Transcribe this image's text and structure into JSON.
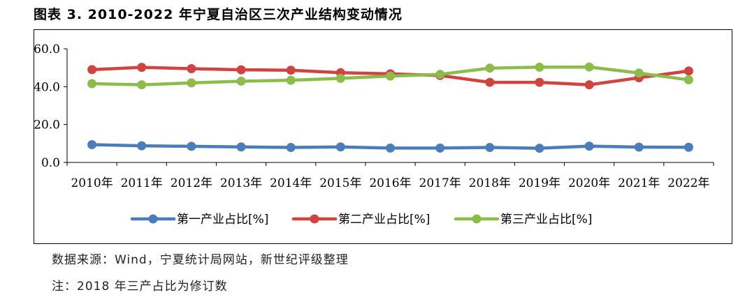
{
  "title": "图表 3. 2010-2022 年宁夏自治区三次产业结构变动情况",
  "source": "数据来源：Wind，宁夏统计局网站，新世纪评级整理",
  "note": "注：2018 年三产占比为修订数",
  "chart_data": {
    "type": "line",
    "title": "",
    "xlabel": "",
    "ylabel": "",
    "categories": [
      "2010年",
      "2011年",
      "2012年",
      "2013年",
      "2014年",
      "2015年",
      "2016年",
      "2017年",
      "2018年",
      "2019年",
      "2020年",
      "2021年",
      "2022年"
    ],
    "ylim": [
      0,
      60
    ],
    "yticks": [
      "0.0",
      "20.0",
      "40.0",
      "60.0"
    ],
    "ytick_values": [
      0,
      20,
      40,
      60
    ],
    "grid": false,
    "legend_position": "bottom",
    "series": [
      {
        "name": "第一产业占比[%]",
        "color": "#4a7ebb",
        "values": [
          9.4,
          8.8,
          8.5,
          8.2,
          7.9,
          8.2,
          7.6,
          7.6,
          7.9,
          7.5,
          8.6,
          8.1,
          8.0
        ]
      },
      {
        "name": "第二产业占比[%]",
        "color": "#d0433f",
        "values": [
          49.0,
          50.2,
          49.5,
          48.9,
          48.7,
          47.4,
          46.8,
          45.9,
          42.3,
          42.3,
          41.0,
          44.7,
          48.3
        ]
      },
      {
        "name": "第三产业占比[%]",
        "color": "#8cbd4b",
        "values": [
          41.6,
          41.0,
          42.0,
          42.9,
          43.4,
          44.4,
          45.6,
          46.5,
          49.8,
          50.3,
          50.4,
          47.2,
          43.6
        ]
      }
    ]
  }
}
